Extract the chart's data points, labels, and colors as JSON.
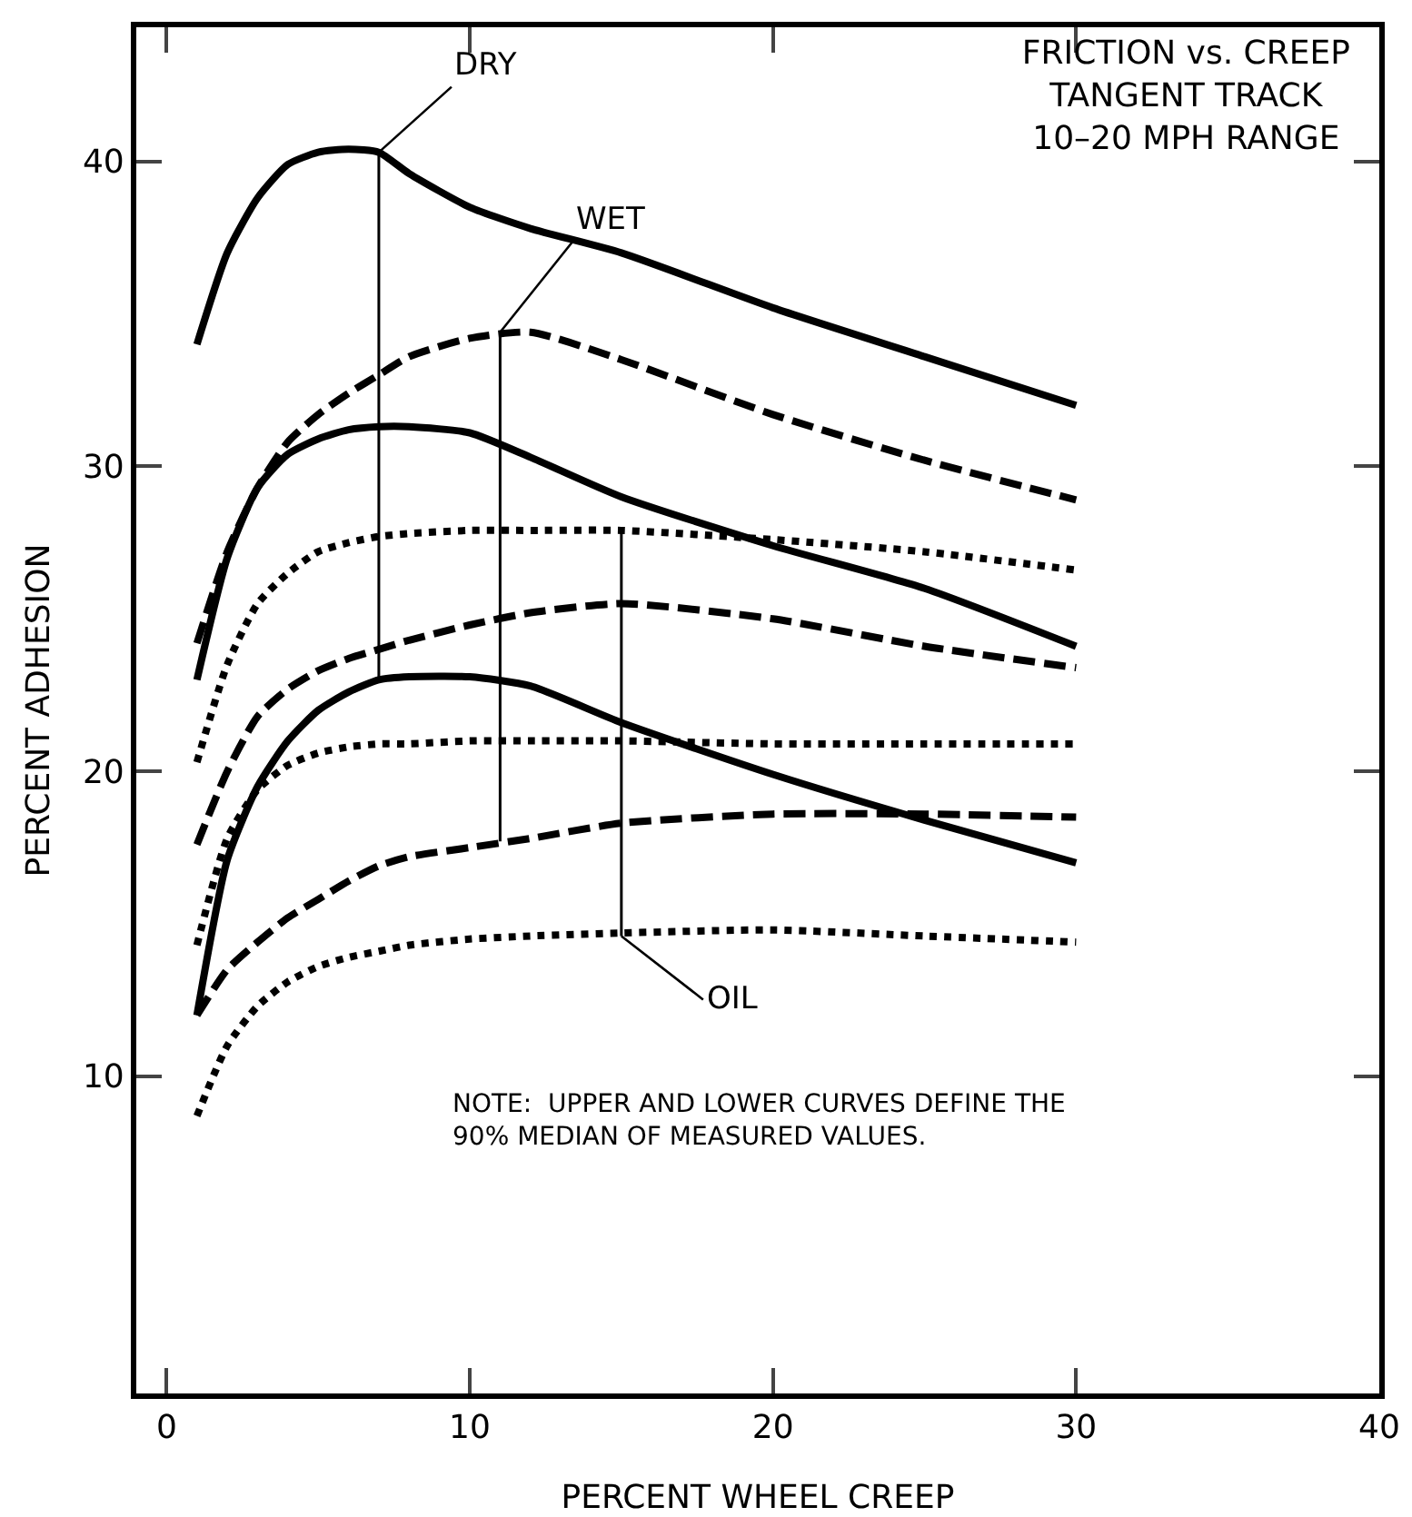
{
  "chart_data": {
    "type": "line",
    "title": "FRICTION vs. CREEP\nTANGENT TRACK\n10–20 MPH RANGE",
    "xlabel": "PERCENT WHEEL CREEP",
    "ylabel": "PERCENT ADHESION",
    "x": [
      1,
      2,
      3,
      4,
      5,
      6,
      7,
      8,
      10,
      12,
      15,
      20,
      25,
      30
    ],
    "series": [
      {
        "color": "#000000",
        "line_style": "solid",
        "values": [
          34.0,
          37.0,
          38.8,
          39.9,
          40.3,
          40.4,
          40.3,
          39.6,
          38.5,
          37.8,
          37.0,
          35.2,
          33.6,
          32.0
        ]
      },
      {
        "color": "#000000",
        "line_style": "dashed",
        "values": [
          24.2,
          27.2,
          29.3,
          30.8,
          31.7,
          32.4,
          33.0,
          33.6,
          34.2,
          34.4,
          33.5,
          31.7,
          30.2,
          28.9
        ]
      },
      {
        "color": "#000000",
        "line_style": "solid",
        "values": [
          23.0,
          27.0,
          29.3,
          30.4,
          30.9,
          31.2,
          31.3,
          31.3,
          31.1,
          30.3,
          29.0,
          27.4,
          26.0,
          24.1
        ]
      },
      {
        "color": "#000000",
        "line_style": "dotted",
        "values": [
          20.3,
          23.5,
          25.5,
          26.5,
          27.2,
          27.5,
          27.7,
          27.8,
          27.9,
          27.9,
          27.9,
          27.6,
          27.2,
          26.6
        ]
      },
      {
        "color": "#000000",
        "line_style": "dashed",
        "values": [
          17.6,
          20.0,
          21.8,
          22.7,
          23.3,
          23.7,
          24.0,
          24.3,
          24.8,
          25.2,
          25.5,
          25.0,
          24.1,
          23.4
        ]
      },
      {
        "color": "#000000",
        "line_style": "solid",
        "values": [
          12.0,
          17.1,
          19.5,
          21.0,
          22.0,
          22.6,
          23.0,
          23.1,
          23.1,
          22.8,
          21.6,
          19.9,
          18.4,
          17.0
        ]
      },
      {
        "color": "#000000",
        "line_style": "dotted",
        "values": [
          14.3,
          17.8,
          19.4,
          20.2,
          20.6,
          20.8,
          20.9,
          20.9,
          21.0,
          21.0,
          21.0,
          20.9,
          20.9,
          20.9
        ]
      },
      {
        "color": "#000000",
        "line_style": "dashed",
        "values": [
          12.0,
          13.5,
          14.4,
          15.2,
          15.8,
          16.4,
          16.9,
          17.2,
          17.5,
          17.8,
          18.3,
          18.6,
          18.6,
          18.5
        ]
      },
      {
        "color": "#000000",
        "line_style": "dotted",
        "values": [
          8.7,
          11.0,
          12.3,
          13.1,
          13.6,
          13.9,
          14.1,
          14.3,
          14.5,
          14.6,
          14.7,
          14.8,
          14.6,
          14.4
        ]
      },
      {
        "color": "#000000",
        "line_style": "solid",
        "x": [
          7,
          7
        ],
        "values": [
          40.3,
          23.0
        ]
      },
      {
        "color": "#000000",
        "line_style": "solid",
        "x": [
          11,
          11
        ],
        "values": [
          34.4,
          17.7
        ]
      },
      {
        "color": "#000000",
        "line_style": "solid",
        "x": [
          15,
          15
        ],
        "values": [
          27.9,
          14.6
        ]
      }
    ],
    "annotations": [
      {
        "text": "DRY",
        "x": 7,
        "y": 40.3
      },
      {
        "text": "WET",
        "x": 11,
        "y": 34.4
      },
      {
        "text": "OIL",
        "x": 15,
        "y": 14.6
      },
      "NOTE:  UPPER AND LOWER CURVES DEFINE THE\n90% MEDIAN OF MEASURED VALUES."
    ],
    "xlim": [
      -1,
      40
    ],
    "ylim": [
      -0.4,
      44.4
    ],
    "xticks": [
      0,
      10,
      20,
      30,
      40
    ],
    "yticks": [
      10,
      20,
      30,
      40
    ],
    "marker": "none"
  }
}
